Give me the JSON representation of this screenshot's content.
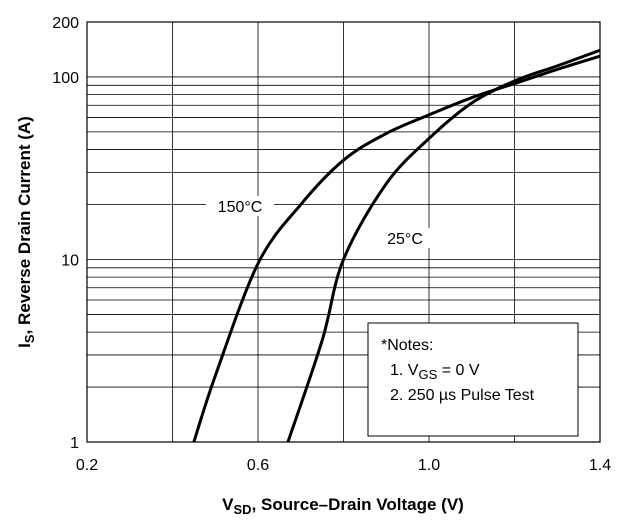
{
  "chart_data": {
    "type": "line",
    "xlabel": {
      "main": "V",
      "sub": "SD",
      "rest": ", Source–Drain Voltage (V)"
    },
    "ylabel": {
      "main": "I",
      "sub": "S",
      "rest": ", Reverse Drain Current (A)"
    },
    "xlim": [
      0.2,
      1.4
    ],
    "xticks": [
      0.2,
      0.6,
      {
        "value": 1,
        "label": "1.0"
      },
      1.4
    ],
    "minor_xticks": [
      0.4,
      0.8,
      1.2
    ],
    "ylim": [
      1,
      200
    ],
    "yticks": [
      1,
      10,
      100,
      200
    ],
    "minor_yticks": [
      2,
      3,
      4,
      5,
      6,
      7,
      8,
      9,
      20,
      30,
      40,
      50,
      60,
      70,
      80,
      90
    ],
    "log_y": true,
    "grid": true,
    "series": [
      {
        "name": "150°C",
        "color": "#000000",
        "x": [
          0.45,
          0.5,
          0.6,
          0.7,
          0.8,
          0.9,
          1.0,
          1.1,
          1.2,
          1.3,
          1.4
        ],
        "values": [
          1,
          2.3,
          9.5,
          20,
          35,
          49,
          62,
          77,
          92,
          110,
          130
        ]
      },
      {
        "name": "25°C",
        "color": "#000000",
        "x": [
          0.67,
          0.75,
          0.8,
          0.9,
          1.0,
          1.1,
          1.2,
          1.3,
          1.4
        ],
        "values": [
          1,
          3.6,
          10,
          26,
          46,
          72,
          95,
          115,
          140
        ]
      }
    ],
    "notes": {
      "title": "*Notes:",
      "item1": {
        "main": "1. V",
        "sub": "GS",
        "rest": " = 0 V"
      },
      "item2": "2. 250 µs Pulse Test"
    }
  }
}
